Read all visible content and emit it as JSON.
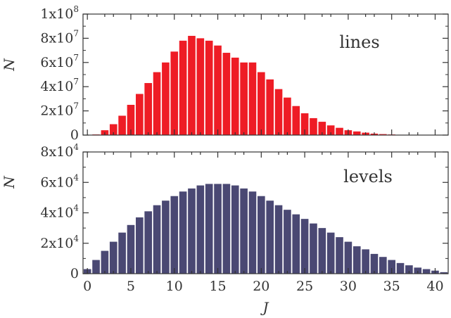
{
  "chart_data": [
    {
      "type": "bar",
      "label": "lines",
      "ylabel": "N",
      "xlabel": "",
      "color": "#ee1c25",
      "xlim": [
        -0.5,
        41.5
      ],
      "ylim": [
        0,
        100000000
      ],
      "ytick_labels": [
        {
          "value": 0,
          "mantissa": "0",
          "exp": ""
        },
        {
          "value": 20000000,
          "mantissa": "2x10",
          "exp": "7"
        },
        {
          "value": 40000000,
          "mantissa": "4x10",
          "exp": "7"
        },
        {
          "value": 60000000,
          "mantissa": "6x10",
          "exp": "7"
        },
        {
          "value": 80000000,
          "mantissa": "8x10",
          "exp": "7"
        },
        {
          "value": 100000000,
          "mantissa": "1x10",
          "exp": "8"
        }
      ],
      "x": [
        0,
        1,
        2,
        3,
        4,
        5,
        6,
        7,
        8,
        9,
        10,
        11,
        12,
        13,
        14,
        15,
        16,
        17,
        18,
        19,
        20,
        21,
        22,
        23,
        24,
        25,
        26,
        27,
        28,
        29,
        30,
        31,
        32,
        33,
        34,
        35,
        36,
        37,
        38,
        39,
        40,
        41
      ],
      "values": [
        0,
        500000,
        4000000,
        9000000,
        16000000,
        25000000,
        34000000,
        43000000,
        52000000,
        60000000,
        69000000,
        78000000,
        82000000,
        80000000,
        78000000,
        74000000,
        68000000,
        64000000,
        60000000,
        60000000,
        52000000,
        46000000,
        38000000,
        31000000,
        24000000,
        18000000,
        14000000,
        11000000,
        8000000,
        6000000,
        4000000,
        3000000,
        2000000,
        1200000,
        800000,
        500000,
        300000,
        200000,
        100000,
        50000,
        20000,
        0
      ]
    },
    {
      "type": "bar",
      "label": "levels",
      "ylabel": "N",
      "xlabel": "J",
      "color": "#4a4873",
      "xlim": [
        -0.5,
        41.5
      ],
      "ylim": [
        0,
        80000
      ],
      "ytick_labels": [
        {
          "value": 0,
          "mantissa": "0",
          "exp": ""
        },
        {
          "value": 20000,
          "mantissa": "2x10",
          "exp": "4"
        },
        {
          "value": 40000,
          "mantissa": "4x10",
          "exp": "4"
        },
        {
          "value": 60000,
          "mantissa": "6x10",
          "exp": "4"
        },
        {
          "value": 80000,
          "mantissa": "8x10",
          "exp": "4"
        }
      ],
      "xticks": [
        0,
        5,
        10,
        15,
        20,
        25,
        30,
        35,
        40
      ],
      "x": [
        0,
        1,
        2,
        3,
        4,
        5,
        6,
        7,
        8,
        9,
        10,
        11,
        12,
        13,
        14,
        15,
        16,
        17,
        18,
        19,
        20,
        21,
        22,
        23,
        24,
        25,
        26,
        27,
        28,
        29,
        30,
        31,
        32,
        33,
        34,
        35,
        36,
        37,
        38,
        39,
        40,
        41
      ],
      "values": [
        3000,
        9000,
        15000,
        21000,
        27000,
        32000,
        37000,
        41000,
        45000,
        48000,
        51000,
        54000,
        56000,
        58000,
        59000,
        59000,
        59000,
        58000,
        56000,
        54000,
        51000,
        48000,
        45000,
        42000,
        39000,
        36000,
        33000,
        30000,
        27000,
        24000,
        21000,
        18000,
        16000,
        13000,
        11000,
        9000,
        7000,
        5500,
        4000,
        3000,
        2000,
        1000
      ]
    }
  ]
}
